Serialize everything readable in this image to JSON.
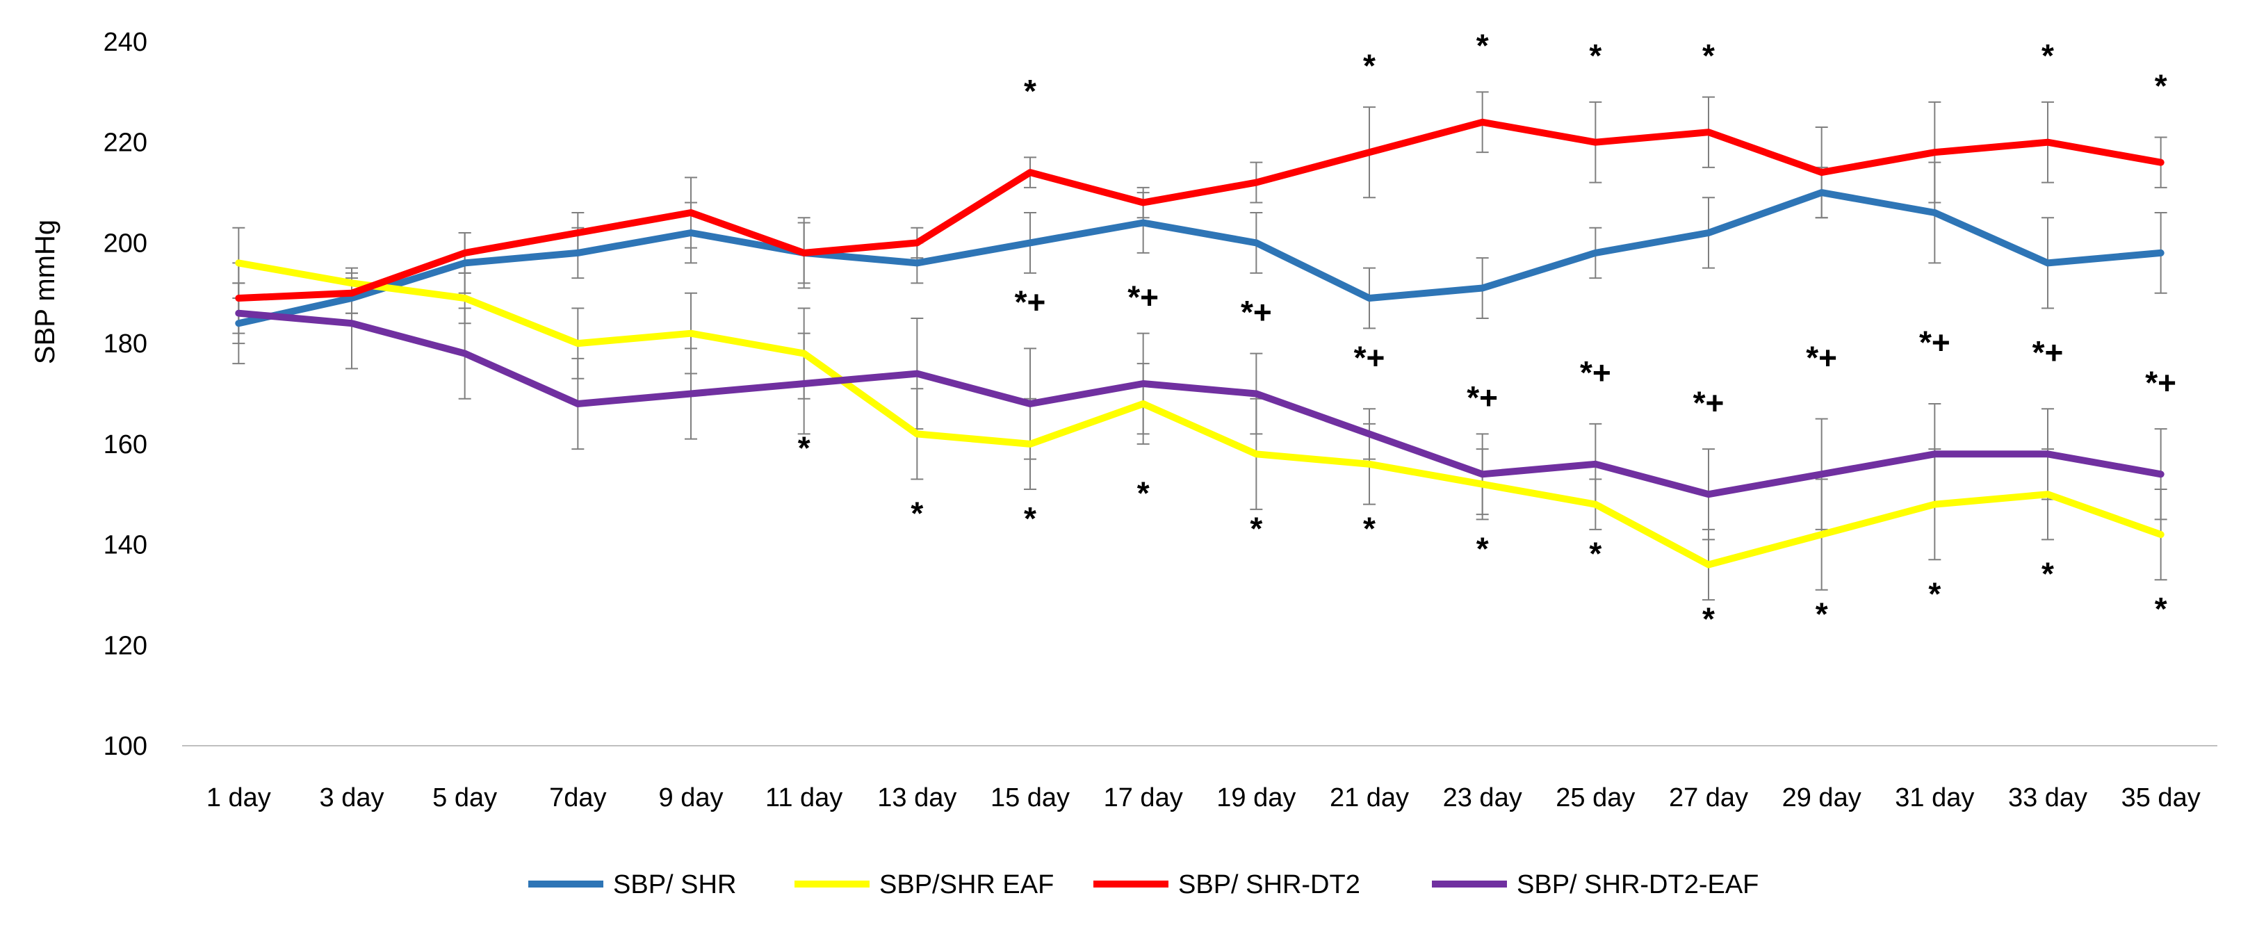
{
  "chart_data": {
    "type": "line",
    "title": "",
    "xlabel": "",
    "ylabel": "SBP mmHg",
    "ylim": [
      100,
      240
    ],
    "yticks": [
      100,
      120,
      140,
      160,
      180,
      200,
      220,
      240
    ],
    "grid": false,
    "legend_position": "bottom",
    "categories": [
      "1 day",
      "3 day",
      "5 day",
      "7day",
      "9 day",
      "11 day",
      "13 day",
      "15 day",
      "17 day",
      "19 day",
      "21 day",
      "23 day",
      "25 day",
      "27 day",
      "29 day",
      "31 day",
      "33 day",
      "35 day"
    ],
    "series": [
      {
        "name": "SBP/ SHR",
        "color": "#2E75B6",
        "values": [
          184,
          189,
          196,
          198,
          202,
          198,
          196,
          200,
          204,
          200,
          189,
          191,
          198,
          202,
          210,
          206,
          196,
          198
        ],
        "errors": [
          8,
          3,
          6,
          5,
          6,
          6,
          4,
          6,
          6,
          6,
          6,
          6,
          5,
          7,
          5,
          10,
          9,
          8
        ]
      },
      {
        "name": "SBP/SHR EAF",
        "color": "#FFFF00",
        "values": [
          196,
          192,
          189,
          180,
          182,
          178,
          162,
          160,
          168,
          158,
          156,
          152,
          148,
          136,
          142,
          148,
          150,
          142
        ],
        "errors": [
          7,
          3,
          5,
          7,
          8,
          9,
          9,
          9,
          8,
          11,
          8,
          7,
          5,
          7,
          11,
          11,
          9,
          9
        ]
      },
      {
        "name": "SBP/ SHR-DT2",
        "color": "#FF0000",
        "values": [
          189,
          190,
          198,
          202,
          206,
          198,
          200,
          214,
          208,
          212,
          218,
          224,
          220,
          222,
          214,
          218,
          220,
          216
        ],
        "errors": [
          7,
          4,
          4,
          4,
          7,
          7,
          3,
          3,
          3,
          4,
          9,
          6,
          8,
          7,
          9,
          10,
          8,
          5
        ]
      },
      {
        "name": "SBP/ SHR-DT2-EAF",
        "color": "#7030A0",
        "values": [
          186,
          184,
          178,
          168,
          170,
          172,
          174,
          168,
          172,
          170,
          162,
          154,
          156,
          150,
          154,
          158,
          158,
          154
        ],
        "errors": [
          6,
          9,
          9,
          9,
          9,
          10,
          11,
          11,
          10,
          8,
          5,
          8,
          8,
          9,
          11,
          10,
          9,
          9
        ]
      }
    ],
    "annotations": [
      {
        "category": "15 day",
        "y": 228,
        "text": "*"
      },
      {
        "category": "21 day",
        "y": 233,
        "text": "*"
      },
      {
        "category": "23 day",
        "y": 237,
        "text": "*"
      },
      {
        "category": "25 day",
        "y": 235,
        "text": "*"
      },
      {
        "category": "27 day",
        "y": 235,
        "text": "*"
      },
      {
        "category": "33 day",
        "y": 235,
        "text": "*"
      },
      {
        "category": "35 day",
        "y": 229,
        "text": "*"
      },
      {
        "category": "15 day",
        "y": 186,
        "text": "*+"
      },
      {
        "category": "17 day",
        "y": 187,
        "text": "*+"
      },
      {
        "category": "19 day",
        "y": 184,
        "text": "*+"
      },
      {
        "category": "21 day",
        "y": 175,
        "text": "*+"
      },
      {
        "category": "23 day",
        "y": 167,
        "text": "*+"
      },
      {
        "category": "25 day",
        "y": 172,
        "text": "*+"
      },
      {
        "category": "27 day",
        "y": 166,
        "text": "*+"
      },
      {
        "category": "29 day",
        "y": 175,
        "text": "*+"
      },
      {
        "category": "31 day",
        "y": 178,
        "text": "*+"
      },
      {
        "category": "33 day",
        "y": 176,
        "text": "*+"
      },
      {
        "category": "35 day",
        "y": 170,
        "text": "*+"
      },
      {
        "category": "11 day",
        "y": 157,
        "text": "*"
      },
      {
        "category": "13 day",
        "y": 144,
        "text": "*"
      },
      {
        "category": "15 day",
        "y": 143,
        "text": "*"
      },
      {
        "category": "17 day",
        "y": 148,
        "text": "*"
      },
      {
        "category": "19 day",
        "y": 141,
        "text": "*"
      },
      {
        "category": "21 day",
        "y": 141,
        "text": "*"
      },
      {
        "category": "23 day",
        "y": 137,
        "text": "*"
      },
      {
        "category": "25 day",
        "y": 136,
        "text": "*"
      },
      {
        "category": "27 day",
        "y": 123,
        "text": "*"
      },
      {
        "category": "29 day",
        "y": 124,
        "text": "*"
      },
      {
        "category": "31 day",
        "y": 128,
        "text": "*"
      },
      {
        "category": "33 day",
        "y": 132,
        "text": "*"
      },
      {
        "category": "35 day",
        "y": 125,
        "text": "*"
      }
    ]
  }
}
